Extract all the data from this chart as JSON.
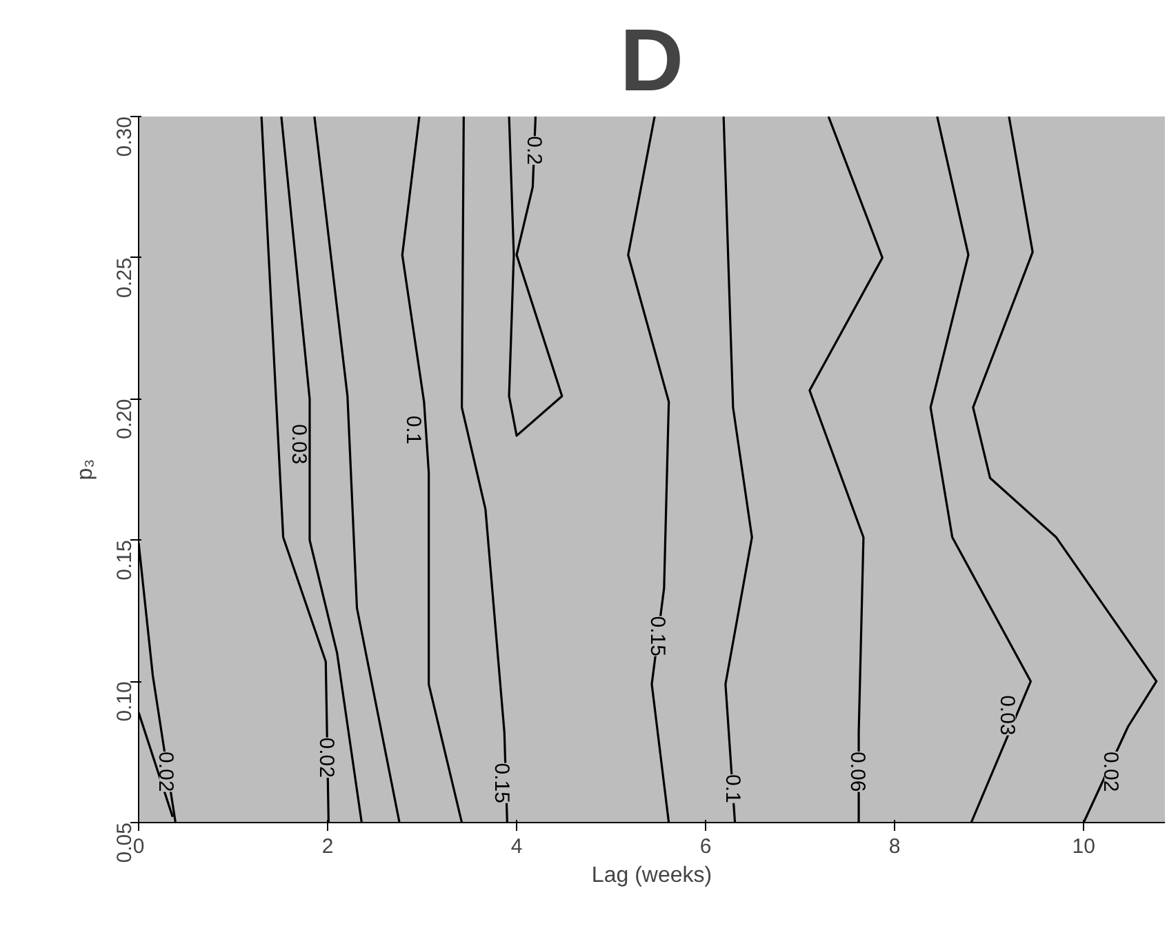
{
  "chart_data": {
    "type": "line",
    "title": "D",
    "xlabel": "Lag (weeks)",
    "ylabel": "p₃",
    "xlim": [
      0,
      10.86
    ],
    "ylim": [
      0.05,
      0.3
    ],
    "xticks": [
      0,
      2,
      4,
      6,
      8,
      10
    ],
    "yticks": [
      {
        "value": 0.05,
        "label": "0.05"
      },
      {
        "value": 0.1,
        "label": "0.10"
      },
      {
        "value": 0.15,
        "label": "0.15"
      },
      {
        "value": 0.2,
        "label": "0.20"
      },
      {
        "value": 0.25,
        "label": "0.25"
      },
      {
        "value": 0.3,
        "label": "0.30"
      }
    ],
    "grid": false,
    "marker": "none",
    "line_style": "solid",
    "series": [
      {
        "color": "#000000",
        "x": [
          0,
          0.15,
          0.39
        ],
        "values": [
          0.149,
          0.102,
          0.05
        ]
      },
      {
        "color": "#000000",
        "x": [
          0,
          0.36
        ],
        "values": [
          0.089,
          0.052
        ]
      },
      {
        "color": "#000000",
        "x": [
          1.3,
          1.53,
          1.98,
          2.01
        ],
        "values": [
          0.3,
          0.151,
          0.107,
          0.05
        ]
      },
      {
        "color": "#000000",
        "x": [
          1.51,
          1.81,
          1.81,
          2.1,
          2.36
        ],
        "values": [
          0.3,
          0.2,
          0.15,
          0.11,
          0.05
        ]
      },
      {
        "color": "#000000",
        "x": [
          1.86,
          2.21,
          2.31,
          2.76
        ],
        "values": [
          0.3,
          0.201,
          0.126,
          0.05
        ]
      },
      {
        "color": "#000000",
        "x": [
          2.97,
          2.79,
          3.02,
          3.07,
          3.07,
          3.42
        ],
        "values": [
          0.3,
          0.251,
          0.199,
          0.174,
          0.099,
          0.05
        ]
      },
      {
        "color": "#000000",
        "x": [
          3.44,
          3.42,
          3.67,
          3.87,
          3.9
        ],
        "values": [
          0.3,
          0.197,
          0.161,
          0.082,
          0.05
        ]
      },
      {
        "color": "#000000",
        "x": [
          3.92,
          3.97,
          3.92,
          4.0,
          4.48,
          4.0,
          4.17,
          4.2
        ],
        "values": [
          0.3,
          0.251,
          0.201,
          0.187,
          0.201,
          0.251,
          0.275,
          0.3
        ]
      },
      {
        "color": "#000000",
        "x": [
          5.46,
          5.18,
          5.61,
          5.56,
          5.43,
          5.61
        ],
        "values": [
          0.3,
          0.251,
          0.199,
          0.133,
          0.099,
          0.05
        ]
      },
      {
        "color": "#000000",
        "x": [
          6.19,
          6.29,
          6.49,
          6.21,
          6.31
        ],
        "values": [
          0.3,
          0.197,
          0.151,
          0.099,
          0.05
        ]
      },
      {
        "color": "#000000",
        "x": [
          7.3,
          7.87,
          7.1,
          7.67,
          7.62,
          7.62
        ],
        "values": [
          0.3,
          0.25,
          0.203,
          0.151,
          0.082,
          0.05
        ]
      },
      {
        "color": "#000000",
        "x": [
          8.45,
          8.78,
          8.38,
          8.61,
          9.44,
          8.81
        ],
        "values": [
          0.3,
          0.251,
          0.197,
          0.151,
          0.1,
          0.05
        ]
      },
      {
        "color": "#000000",
        "x": [
          9.21,
          9.46,
          8.83,
          9.01,
          9.71,
          10.77,
          10.47,
          10.0
        ],
        "values": [
          0.3,
          0.252,
          0.197,
          0.172,
          0.151,
          0.1,
          0.084,
          0.05
        ]
      }
    ],
    "annotations": [
      {
        "text": "0.02",
        "x": 0.3,
        "y": 0.068
      },
      {
        "text": "0.02",
        "x": 2.0,
        "y": 0.073
      },
      {
        "text": "0.03",
        "x": 1.71,
        "y": 0.184
      },
      {
        "text": "0.1",
        "x": 2.92,
        "y": 0.189
      },
      {
        "text": "0.15",
        "x": 3.85,
        "y": 0.064
      },
      {
        "text": "0.2",
        "x": 4.2,
        "y": 0.288
      },
      {
        "text": "0.15",
        "x": 5.5,
        "y": 0.116
      },
      {
        "text": "0.1",
        "x": 6.3,
        "y": 0.062
      },
      {
        "text": "0.06",
        "x": 7.62,
        "y": 0.068
      },
      {
        "text": "0.03",
        "x": 9.2,
        "y": 0.088
      },
      {
        "text": "0.02",
        "x": 10.3,
        "y": 0.068
      }
    ]
  }
}
